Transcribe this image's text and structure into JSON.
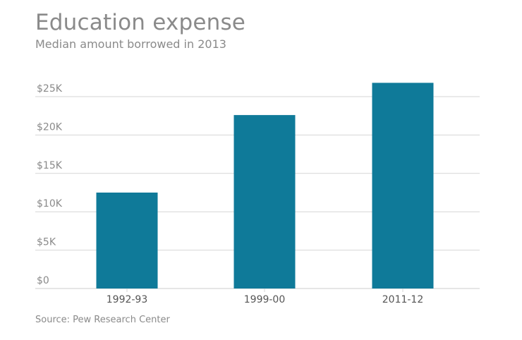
{
  "title": "Education expense",
  "subtitle": "Median amount borrowed in 2013",
  "source": "Source: Pew Research Center",
  "colors": {
    "bar": "#0f7a99",
    "grid": "#d6d6d6",
    "text": "#8a8a8a"
  },
  "chart_data": {
    "type": "bar",
    "title": "Education expense",
    "subtitle": "Median amount borrowed in 2013",
    "categories": [
      "1992-93",
      "1999-00",
      "2011-12"
    ],
    "values": [
      12500,
      22600,
      26800
    ],
    "ylim": [
      0,
      25000
    ],
    "yticks": [
      0,
      5000,
      10000,
      15000,
      20000,
      25000
    ],
    "ytick_labels": [
      "$0",
      "$5K",
      "$10K",
      "$15K",
      "$20K",
      "$25K"
    ],
    "grid": true,
    "xlabel": "",
    "ylabel": ""
  }
}
